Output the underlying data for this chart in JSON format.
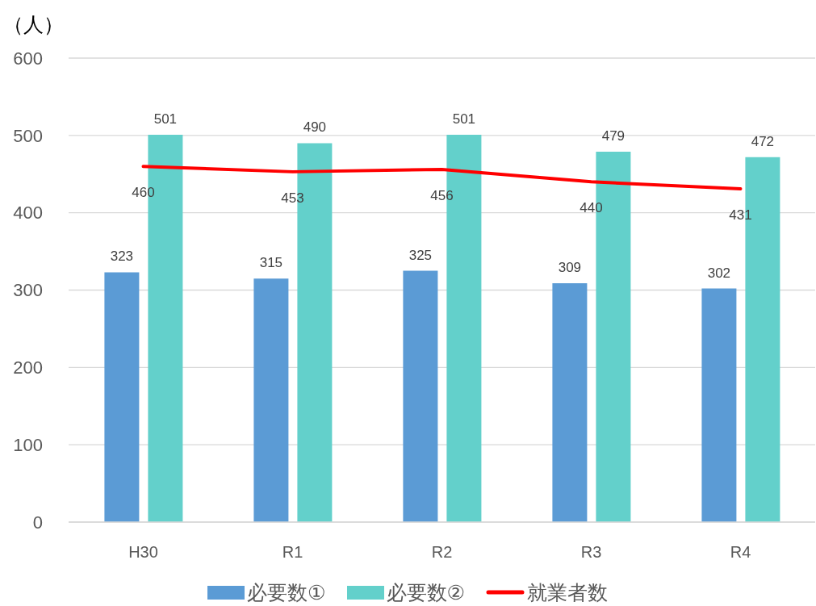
{
  "chart_data": {
    "type": "bar",
    "ylabel": "（人）",
    "categories": [
      "H30",
      "R1",
      "R2",
      "R3",
      "R4"
    ],
    "series": [
      {
        "name": "必要数①",
        "color": "#5b9bd5",
        "values": [
          323,
          315,
          325,
          309,
          302
        ]
      },
      {
        "name": "必要数②",
        "color": "#63d0cb",
        "values": [
          501,
          490,
          501,
          479,
          472
        ]
      },
      {
        "name": "就業者数",
        "type": "line",
        "color": "#ff0000",
        "values": [
          460,
          453,
          456,
          440,
          431
        ]
      }
    ],
    "ylim": [
      0,
      600
    ],
    "yticks": [
      0,
      100,
      200,
      300,
      400,
      500,
      600
    ],
    "grid": "y",
    "legend": "bottom",
    "data_labels": true
  }
}
